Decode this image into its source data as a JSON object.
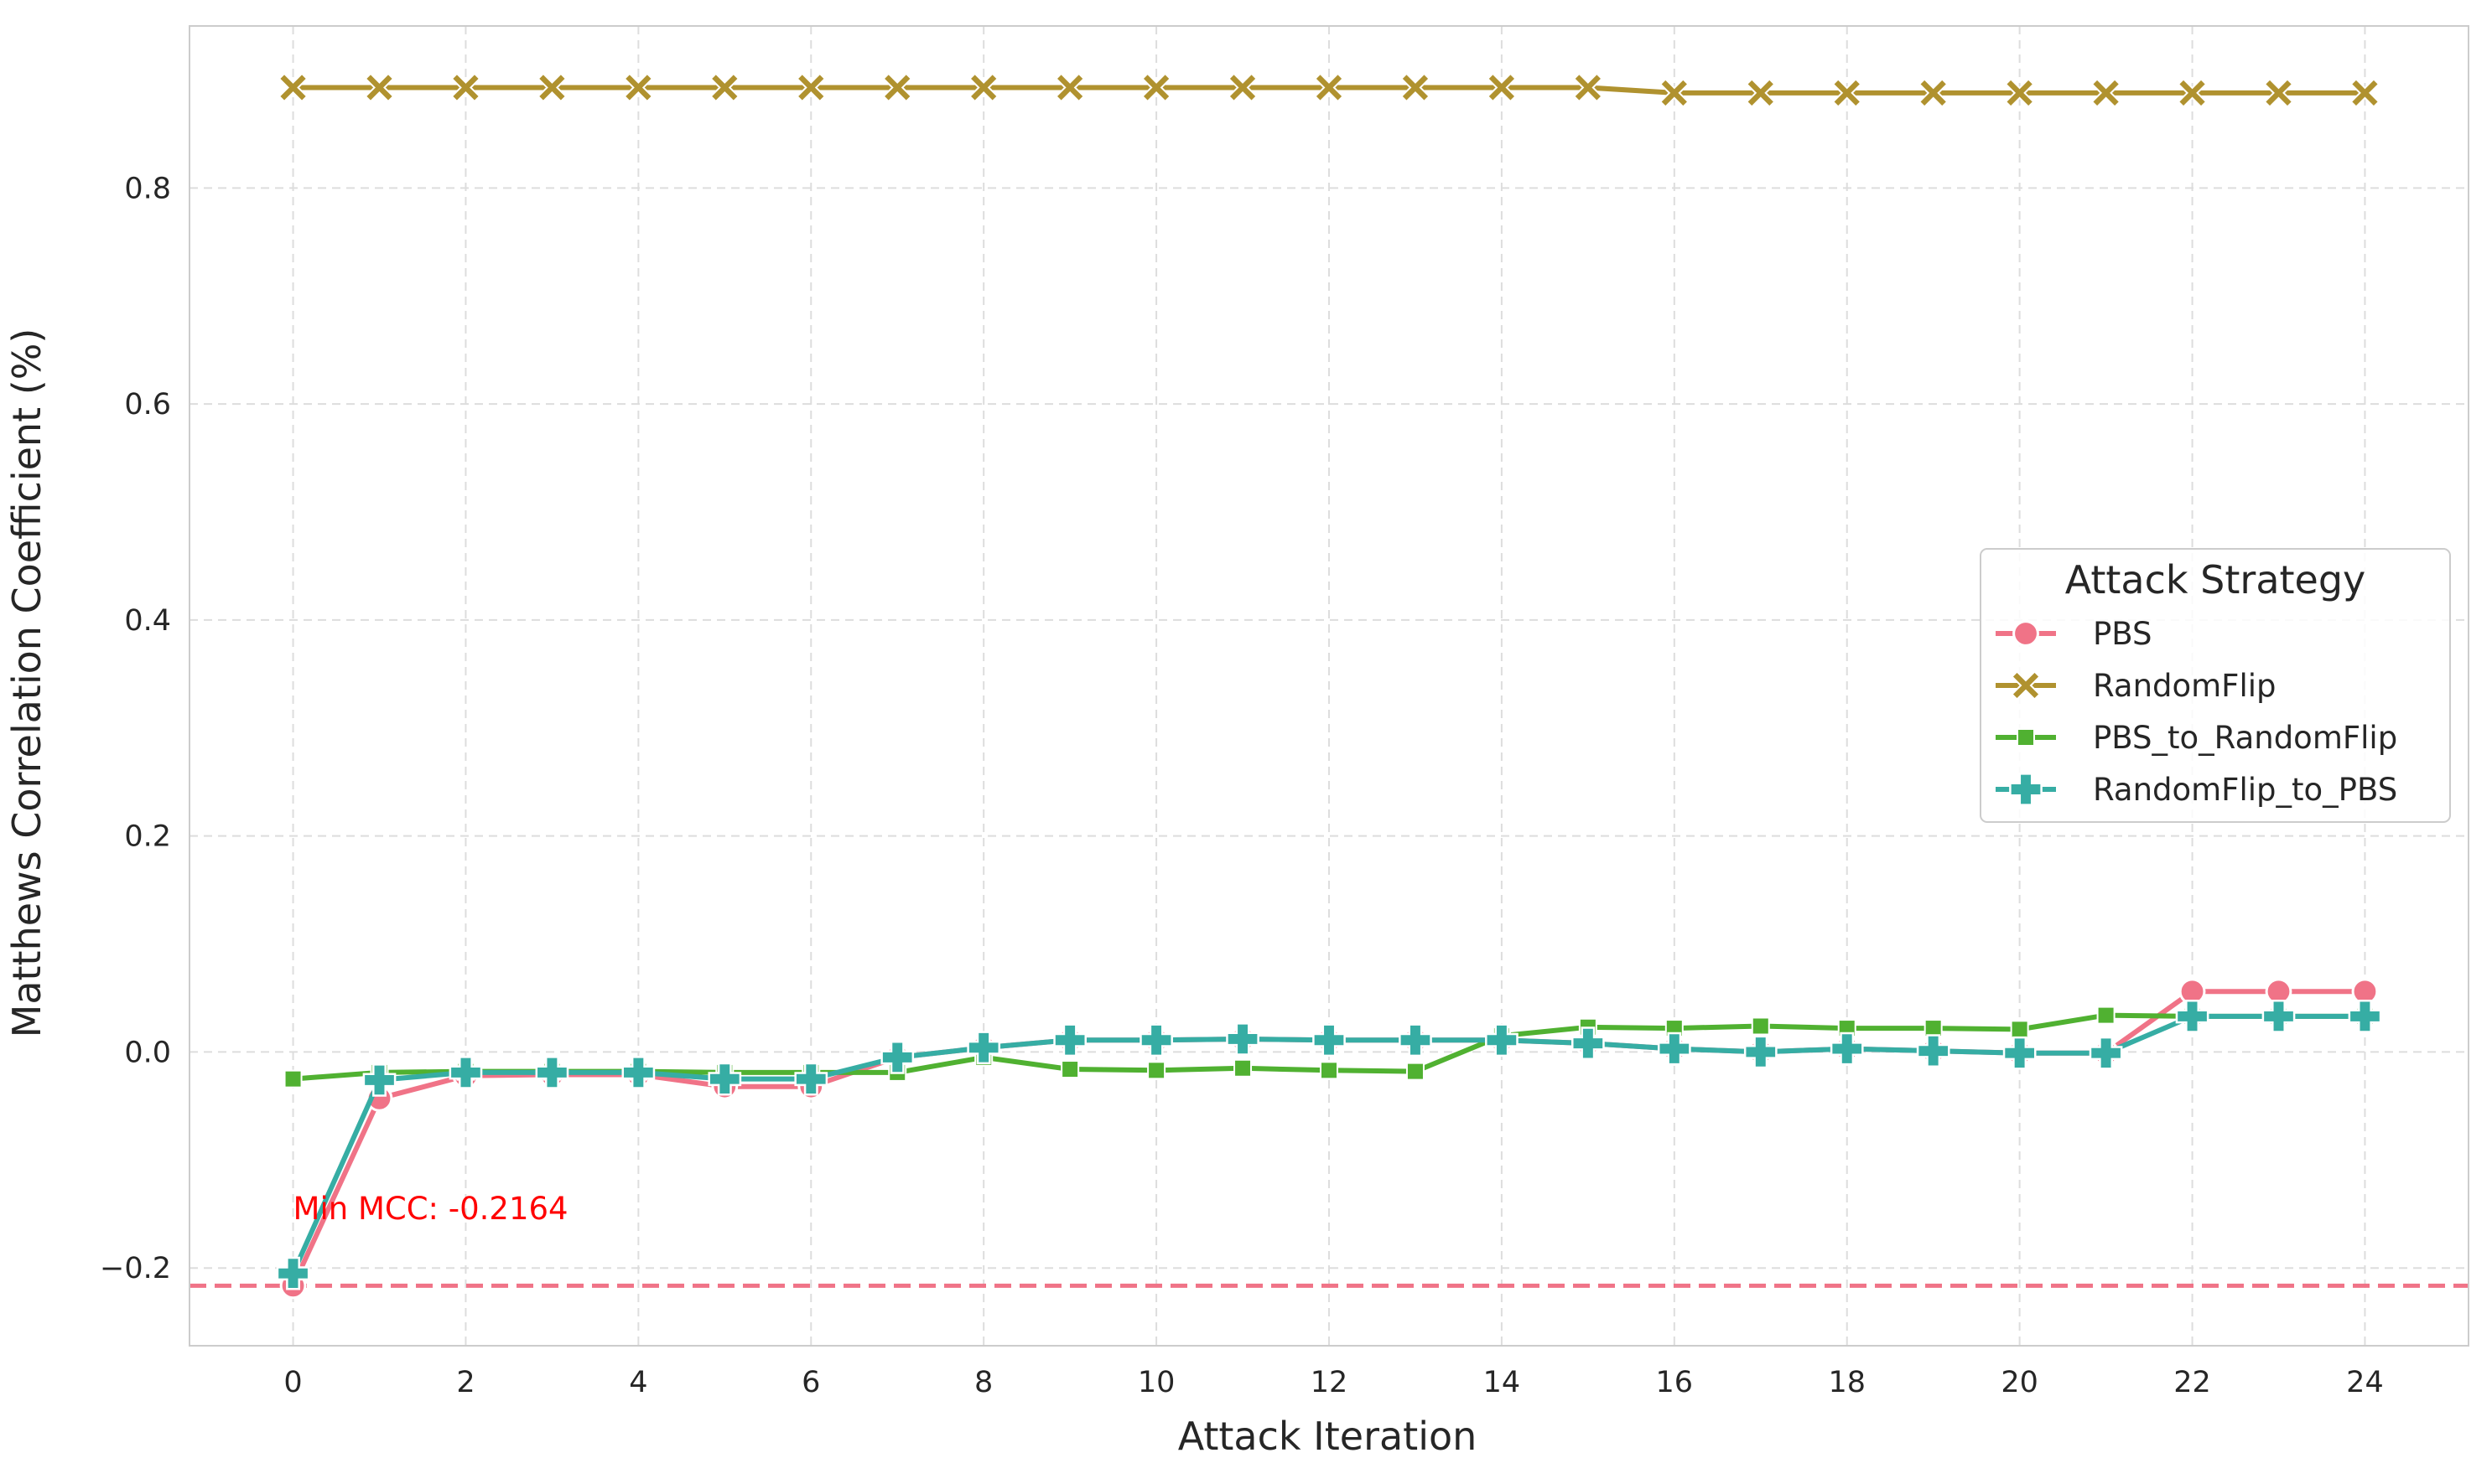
{
  "chart_data": {
    "type": "line",
    "title": "",
    "xlabel": "Attack Iteration",
    "ylabel": "Matthews Correlation Coefficient (%)",
    "xlim": [
      -1.2,
      25.2
    ],
    "ylim": [
      -0.272,
      0.95
    ],
    "x": [
      0,
      1,
      2,
      3,
      4,
      5,
      6,
      7,
      8,
      9,
      10,
      11,
      12,
      13,
      14,
      15,
      16,
      17,
      18,
      19,
      20,
      21,
      22,
      23,
      24
    ],
    "xticks": [
      0,
      2,
      4,
      6,
      8,
      10,
      12,
      14,
      16,
      18,
      20,
      22,
      24
    ],
    "xtick_labels": [
      "0",
      "2",
      "4",
      "6",
      "8",
      "10",
      "12",
      "14",
      "16",
      "18",
      "20",
      "22",
      "24"
    ],
    "yticks": [
      -0.2,
      0.0,
      0.2,
      0.4,
      0.6,
      0.8
    ],
    "ytick_labels": [
      "−0.2",
      "0.0",
      "0.2",
      "0.4",
      "0.6",
      "0.8"
    ],
    "grid": true,
    "legend": {
      "title": "Attack Strategy",
      "placement": "center-right"
    },
    "series": [
      {
        "name": "PBS",
        "color": "#f07387",
        "marker": "circle",
        "values": [
          -0.2164,
          -0.043,
          -0.022,
          -0.021,
          -0.021,
          -0.032,
          -0.032,
          -0.005,
          0.004,
          0.011,
          0.011,
          0.012,
          0.011,
          0.011,
          0.011,
          0.008,
          0.003,
          0.0,
          0.003,
          0.001,
          -0.001,
          -0.001,
          0.056,
          0.056,
          0.056
        ]
      },
      {
        "name": "RandomFlip",
        "color": "#b0922f",
        "marker": "x",
        "values": [
          0.893,
          0.893,
          0.893,
          0.893,
          0.893,
          0.893,
          0.893,
          0.893,
          0.893,
          0.893,
          0.893,
          0.893,
          0.893,
          0.893,
          0.893,
          0.893,
          0.888,
          0.888,
          0.888,
          0.888,
          0.888,
          0.888,
          0.888,
          0.888,
          0.888
        ]
      },
      {
        "name": "PBS_to_RandomFlip",
        "color": "#50b131",
        "marker": "square",
        "values": [
          -0.025,
          -0.019,
          -0.018,
          -0.018,
          -0.018,
          -0.019,
          -0.019,
          -0.019,
          -0.005,
          -0.016,
          -0.017,
          -0.015,
          -0.017,
          -0.018,
          0.015,
          0.023,
          0.022,
          0.024,
          0.022,
          0.022,
          0.021,
          0.034,
          0.033,
          0.033,
          0.033
        ]
      },
      {
        "name": "RandomFlip_to_PBS",
        "color": "#36ada4",
        "marker": "plus",
        "values": [
          -0.205,
          -0.026,
          -0.019,
          -0.019,
          -0.019,
          -0.025,
          -0.025,
          -0.005,
          0.004,
          0.011,
          0.011,
          0.012,
          0.011,
          0.011,
          0.011,
          0.008,
          0.003,
          0.0,
          0.003,
          0.001,
          -0.001,
          -0.001,
          0.033,
          0.033,
          0.033
        ]
      }
    ],
    "reference_line": {
      "y": -0.2164,
      "color": "#f07387",
      "style": "dashed"
    },
    "annotation": {
      "text": "Min MCC: -0.2164",
      "x": 0,
      "y": -0.155,
      "color": "#ff0000"
    }
  }
}
